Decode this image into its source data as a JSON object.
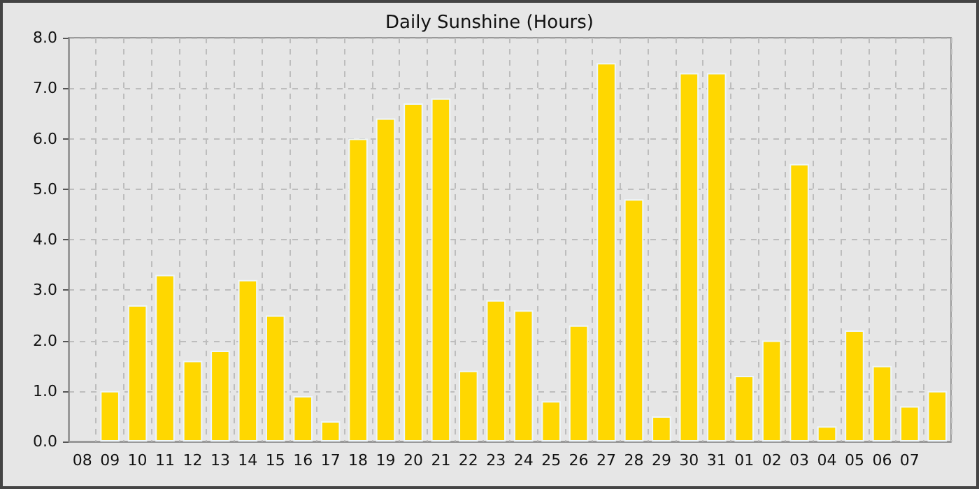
{
  "chart_data": {
    "type": "bar",
    "title": "Daily Sunshine (Hours)",
    "categories": [
      "08",
      "09",
      "10",
      "11",
      "12",
      "13",
      "14",
      "15",
      "16",
      "17",
      "18",
      "19",
      "20",
      "21",
      "22",
      "23",
      "24",
      "25",
      "26",
      "27",
      "28",
      "29",
      "30",
      "31",
      "01",
      "02",
      "03",
      "04",
      "05",
      "06",
      "07",
      null
    ],
    "values": [
      null,
      1.0,
      2.7,
      3.3,
      1.6,
      1.8,
      3.2,
      2.5,
      0.9,
      0.4,
      6.0,
      6.4,
      6.7,
      6.8,
      1.4,
      2.8,
      2.6,
      0.8,
      2.3,
      7.5,
      4.8,
      0.5,
      7.3,
      7.3,
      1.3,
      2.0,
      5.5,
      0.3,
      2.2,
      1.5,
      0.7,
      1.0
    ],
    "color": "#ffd700",
    "ylim": [
      0,
      8
    ],
    "yticks": [
      {
        "value": 0,
        "label": "0.0"
      },
      {
        "value": 1,
        "label": "1.0"
      },
      {
        "value": 2,
        "label": "2.0"
      },
      {
        "value": 3,
        "label": "3.0"
      },
      {
        "value": 4,
        "label": "4.0"
      },
      {
        "value": 5,
        "label": "5.0"
      },
      {
        "value": 6,
        "label": "6.0"
      },
      {
        "value": 7,
        "label": "7.0"
      },
      {
        "value": 8,
        "label": "8.0"
      }
    ],
    "grid": true
  }
}
